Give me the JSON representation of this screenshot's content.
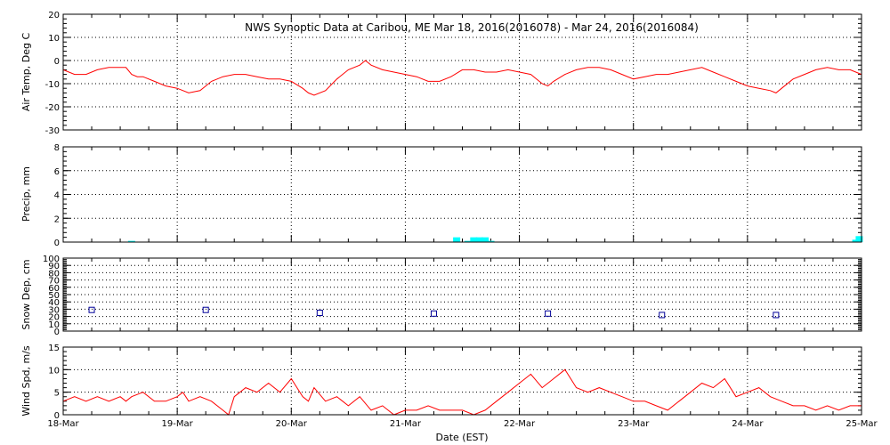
{
  "title": "NWS Synoptic Data at Caribou, ME   Mar 18, 2016(2016078) - Mar 24, 2016(2016084)",
  "xlabel": "Date (EST)",
  "x_ticks": [
    "18-Mar",
    "19-Mar",
    "20-Mar",
    "21-Mar",
    "22-Mar",
    "23-Mar",
    "24-Mar",
    "25-Mar"
  ],
  "colors": {
    "temp": "#ff0000",
    "precip": "#00ffff",
    "snow": "#000099",
    "wind": "#ff0000",
    "axes": "#000000"
  },
  "chart_data": [
    {
      "type": "line",
      "ylabel": "Air Temp, Deg C",
      "ylim": [
        -30,
        20
      ],
      "yticks": [
        -30,
        -20,
        -10,
        0,
        10,
        20
      ],
      "grid": true,
      "series": [
        {
          "x": [
            0,
            0.1,
            0.2,
            0.3,
            0.4,
            0.5,
            0.55,
            0.6,
            0.65,
            0.7,
            0.8,
            0.9,
            1.0,
            1.1,
            1.2,
            1.25,
            1.3,
            1.4,
            1.5,
            1.6,
            1.7,
            1.8,
            1.9,
            2.0,
            2.1,
            2.15,
            2.2,
            2.3,
            2.4,
            2.5,
            2.6,
            2.65,
            2.7,
            2.8,
            2.9,
            3.0,
            3.1,
            3.2,
            3.3,
            3.4,
            3.5,
            3.6,
            3.7,
            3.8,
            3.9,
            4.0,
            4.1,
            4.2,
            4.25,
            4.3,
            4.4,
            4.5,
            4.6,
            4.7,
            4.8,
            4.9,
            5.0,
            5.1,
            5.2,
            5.3,
            5.4,
            5.5,
            5.6,
            5.7,
            5.8,
            5.9,
            6.0,
            6.1,
            6.2,
            6.25,
            6.3,
            6.4,
            6.5,
            6.6,
            6.7,
            6.8,
            6.9,
            7.0
          ],
          "y": [
            -4,
            -6,
            -6,
            -4,
            -3,
            -3,
            -3,
            -6,
            -7,
            -7,
            -9,
            -11,
            -12,
            -14,
            -13,
            -11,
            -9,
            -7,
            -6,
            -6,
            -7,
            -8,
            -8,
            -9,
            -12,
            -14,
            -15,
            -13,
            -8,
            -4,
            -2,
            0,
            -2,
            -4,
            -5,
            -6,
            -7,
            -9,
            -9,
            -7,
            -4,
            -4,
            -5,
            -5,
            -4,
            -5,
            -6,
            -10,
            -11,
            -9,
            -6,
            -4,
            -3,
            -3,
            -4,
            -6,
            -8,
            -7,
            -6,
            -6,
            -5,
            -4,
            -3,
            -5,
            -7,
            -9,
            -11,
            -12,
            -13,
            -14,
            -12,
            -8,
            -6,
            -4,
            -3,
            -4,
            -4,
            -6
          ]
        }
      ]
    },
    {
      "type": "bar",
      "ylabel": "Precip, mm",
      "ylim": [
        0,
        8
      ],
      "yticks": [
        0,
        2,
        4,
        6,
        8
      ],
      "grid": true,
      "x": [
        0.6,
        3.45,
        3.55,
        3.6,
        3.65,
        3.7,
        3.75,
        6.95,
        6.98
      ],
      "values": [
        0.1,
        0.4,
        0.1,
        0.4,
        0.4,
        0.4,
        0.1,
        0.2,
        0.5
      ]
    },
    {
      "type": "scatter",
      "ylabel": "Snow Dep, cm",
      "ylim": [
        0,
        100
      ],
      "yticks": [
        0,
        10,
        20,
        30,
        40,
        50,
        60,
        70,
        80,
        90,
        100
      ],
      "grid": true,
      "series": [
        {
          "x": [
            0.25,
            1.25,
            2.25,
            3.25,
            4.25,
            5.25,
            6.25
          ],
          "y": [
            29,
            29,
            25,
            24,
            24,
            22,
            22
          ]
        }
      ]
    },
    {
      "type": "line",
      "ylabel": "Wind Spd, m/s",
      "ylim": [
        0,
        15
      ],
      "yticks": [
        0,
        5,
        10,
        15
      ],
      "grid": true,
      "series": [
        {
          "x": [
            0,
            0.1,
            0.2,
            0.3,
            0.4,
            0.5,
            0.55,
            0.6,
            0.7,
            0.8,
            0.9,
            1.0,
            1.05,
            1.1,
            1.2,
            1.3,
            1.4,
            1.45,
            1.5,
            1.55,
            1.6,
            1.7,
            1.8,
            1.9,
            2.0,
            2.05,
            2.1,
            2.15,
            2.2,
            2.3,
            2.4,
            2.5,
            2.6,
            2.7,
            2.8,
            2.9,
            3.0,
            3.1,
            3.2,
            3.3,
            3.4,
            3.5,
            3.6,
            3.7,
            3.8,
            3.9,
            4.0,
            4.05,
            4.1,
            4.2,
            4.3,
            4.4,
            4.5,
            4.6,
            4.7,
            4.8,
            4.9,
            5.0,
            5.1,
            5.2,
            5.3,
            5.4,
            5.5,
            5.6,
            5.7,
            5.8,
            5.9,
            6.0,
            6.1,
            6.2,
            6.3,
            6.4,
            6.5,
            6.6,
            6.7,
            6.8,
            6.9,
            7.0
          ],
          "y": [
            3,
            4,
            3,
            4,
            3,
            4,
            3,
            4,
            5,
            3,
            3,
            4,
            5,
            3,
            4,
            3,
            1,
            0,
            4,
            5,
            6,
            5,
            7,
            5,
            8,
            6,
            4,
            3,
            6,
            3,
            4,
            2,
            4,
            1,
            2,
            0,
            1,
            1,
            2,
            1,
            1,
            1,
            0,
            1,
            3,
            5,
            7,
            8,
            9,
            6,
            8,
            10,
            6,
            5,
            6,
            5,
            4,
            3,
            3,
            2,
            1,
            3,
            5,
            7,
            6,
            8,
            4,
            5,
            6,
            4,
            3,
            2,
            2,
            1,
            2,
            1,
            2,
            2
          ]
        }
      ]
    }
  ]
}
